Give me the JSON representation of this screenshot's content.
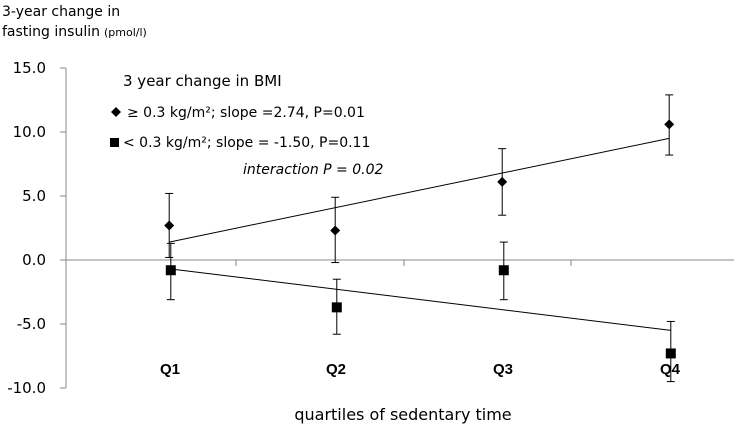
{
  "chart_data": {
    "type": "scatter",
    "ylabel_line1": "3-year change in",
    "ylabel_line2": "fasting insulin",
    "ylabel_unit": "(pmol/l)",
    "xlabel": "quartiles of sedentary time",
    "categories": [
      "Q1",
      "Q2",
      "Q3",
      "Q4"
    ],
    "ylim": [
      -10,
      15
    ],
    "yticks": [
      15,
      10,
      5,
      0,
      -5,
      -10
    ],
    "ytick_labels": [
      "15.0",
      "10.0",
      "5.0",
      "0.0",
      "-5.0",
      "-10.0"
    ],
    "legend_title": "3 year change in BMI",
    "annotation": "interaction P = 0.02",
    "series": [
      {
        "name": "≥ 0.3 kg/m²; slope =2.74, P=0.01",
        "marker": "diamond",
        "values": [
          2.7,
          2.3,
          6.1,
          10.6
        ],
        "err_upper": [
          5.2,
          4.9,
          8.7,
          12.9
        ],
        "err_lower": [
          0.2,
          -0.2,
          3.5,
          8.2
        ],
        "trend": [
          1.4,
          9.5
        ]
      },
      {
        "name": "< 0.3 kg/m²; slope =  -1.50, P=0.11",
        "marker": "square",
        "values": [
          -0.8,
          -3.7,
          -0.8,
          -7.3
        ],
        "err_upper": [
          1.3,
          -1.5,
          1.4,
          -4.8
        ],
        "err_lower": [
          -3.1,
          -5.8,
          -3.1,
          -9.5
        ],
        "trend": [
          -0.7,
          -5.5
        ]
      }
    ]
  }
}
